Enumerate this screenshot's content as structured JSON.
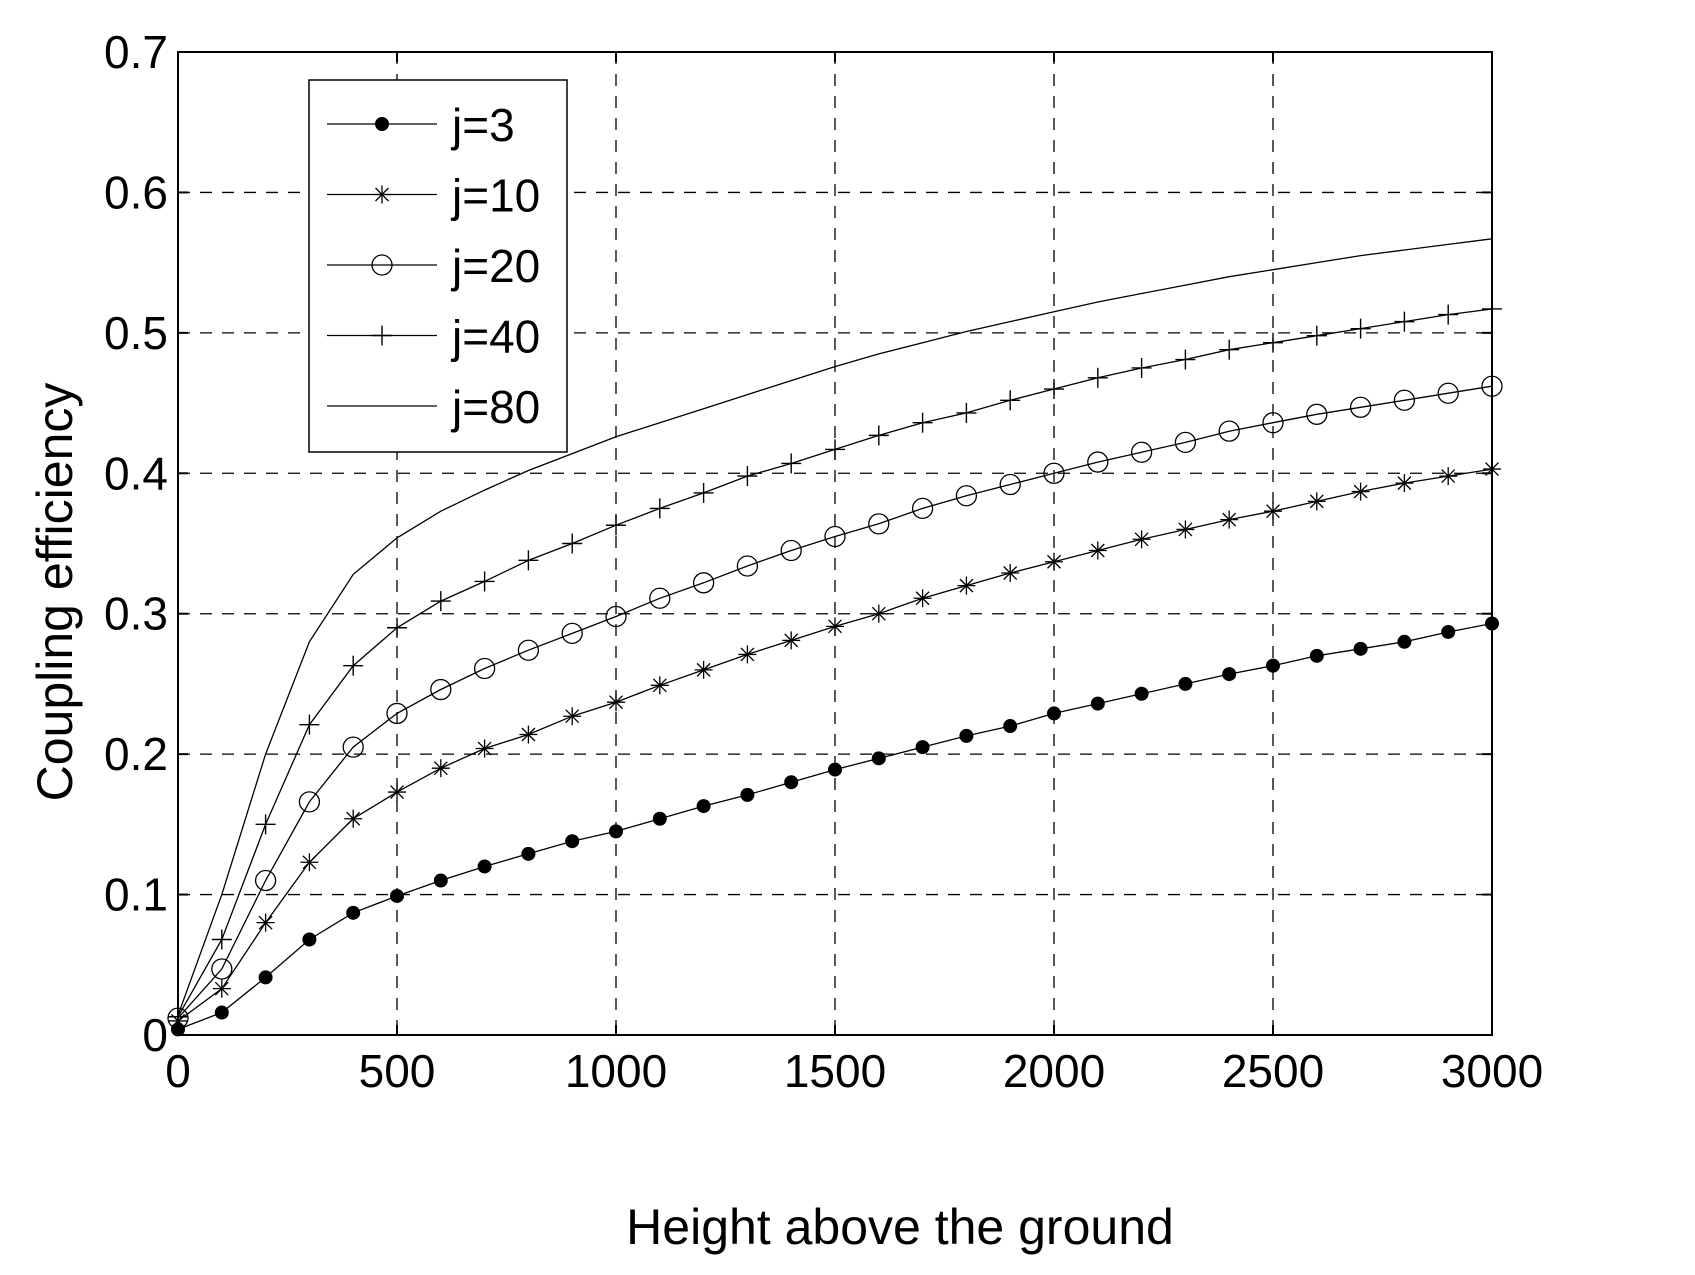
{
  "chart_data": {
    "type": "line",
    "title": "",
    "xlabel": "Height above the ground",
    "ylabel": "Coupling efficiency",
    "xlim": [
      0,
      3000
    ],
    "ylim": [
      0,
      0.7
    ],
    "grid": true,
    "legend_position": "top-left",
    "xticks": [
      0,
      500,
      1000,
      1500,
      2000,
      2500,
      3000
    ],
    "xtick_labels": [
      "0",
      "500",
      "1000",
      "1500",
      "2000",
      "2500",
      "3000"
    ],
    "yticks": [
      0,
      0.1,
      0.2,
      0.3,
      0.4,
      0.5,
      0.6,
      0.7
    ],
    "ytick_labels": [
      "0",
      "0.1",
      "0.2",
      "0.3",
      "0.4",
      "0.5",
      "0.6",
      "0.7"
    ],
    "x": [
      0,
      100,
      200,
      300,
      400,
      500,
      600,
      700,
      800,
      900,
      1000,
      1100,
      1200,
      1300,
      1400,
      1500,
      1600,
      1700,
      1800,
      1900,
      2000,
      2100,
      2200,
      2300,
      2400,
      2500,
      2600,
      2700,
      2800,
      2900,
      3000
    ],
    "series": [
      {
        "name": "j=3",
        "marker": "filled-circle",
        "values": [
          0.004,
          0.016,
          0.041,
          0.068,
          0.087,
          0.099,
          0.11,
          0.12,
          0.129,
          0.138,
          0.145,
          0.154,
          0.163,
          0.171,
          0.18,
          0.189,
          0.197,
          0.205,
          0.213,
          0.22,
          0.229,
          0.236,
          0.243,
          0.25,
          0.257,
          0.263,
          0.27,
          0.275,
          0.28,
          0.287,
          0.293
        ]
      },
      {
        "name": "j=10",
        "marker": "asterisk",
        "values": [
          0.01,
          0.033,
          0.08,
          0.123,
          0.154,
          0.173,
          0.19,
          0.204,
          0.214,
          0.227,
          0.237,
          0.249,
          0.26,
          0.271,
          0.281,
          0.291,
          0.3,
          0.311,
          0.32,
          0.329,
          0.337,
          0.345,
          0.353,
          0.36,
          0.367,
          0.373,
          0.38,
          0.387,
          0.393,
          0.398,
          0.403
        ]
      },
      {
        "name": "j=20",
        "marker": "open-circle",
        "values": [
          0.012,
          0.047,
          0.11,
          0.166,
          0.205,
          0.229,
          0.246,
          0.261,
          0.274,
          0.286,
          0.298,
          0.311,
          0.322,
          0.334,
          0.345,
          0.355,
          0.364,
          0.375,
          0.384,
          0.392,
          0.4,
          0.408,
          0.415,
          0.422,
          0.43,
          0.436,
          0.442,
          0.447,
          0.452,
          0.457,
          0.462
        ]
      },
      {
        "name": "j=40",
        "marker": "plus",
        "values": [
          0.013,
          0.068,
          0.15,
          0.221,
          0.263,
          0.29,
          0.309,
          0.323,
          0.338,
          0.35,
          0.363,
          0.375,
          0.386,
          0.398,
          0.407,
          0.417,
          0.427,
          0.436,
          0.443,
          0.452,
          0.46,
          0.468,
          0.475,
          0.481,
          0.488,
          0.493,
          0.498,
          0.503,
          0.508,
          0.513,
          0.517
        ]
      },
      {
        "name": "j=80",
        "marker": "none",
        "values": [
          0.014,
          0.1,
          0.2,
          0.28,
          0.328,
          0.354,
          0.373,
          0.388,
          0.402,
          0.414,
          0.426,
          0.436,
          0.446,
          0.456,
          0.466,
          0.476,
          0.485,
          0.493,
          0.501,
          0.508,
          0.515,
          0.522,
          0.528,
          0.534,
          0.54,
          0.545,
          0.55,
          0.555,
          0.559,
          0.563,
          0.567
        ]
      }
    ]
  }
}
